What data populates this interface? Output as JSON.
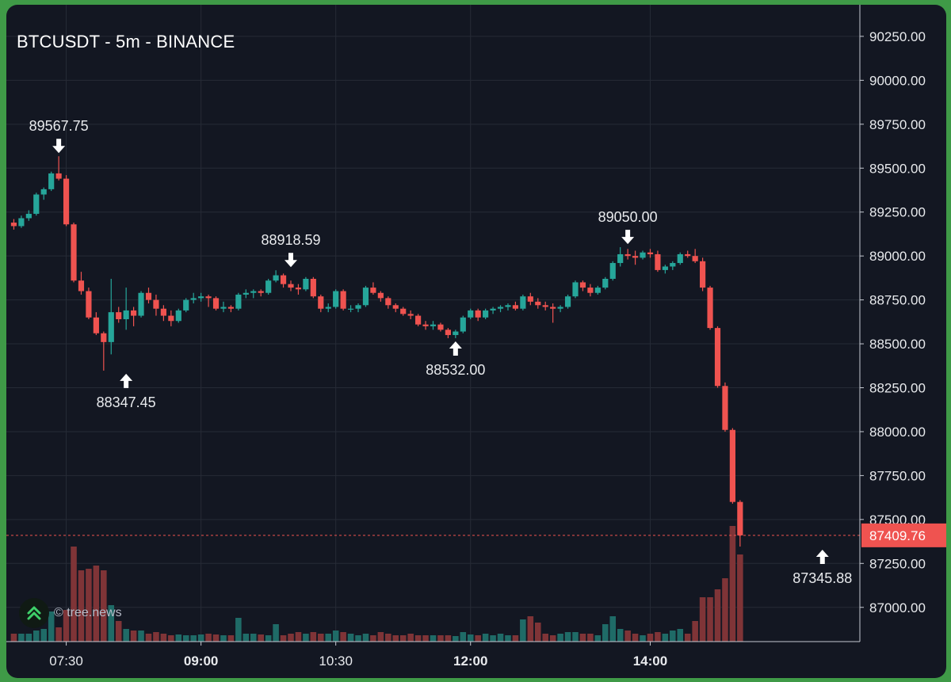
{
  "title": "BTCUSDT - 5m - BINANCE",
  "watermark": {
    "text": "© tree.news",
    "icon": "double-chevron-up-icon"
  },
  "colors": {
    "background": "#131722",
    "grid": "#262b36",
    "up": "#26a69a",
    "down": "#ef5350",
    "up_volume": "#1f6b67",
    "down_volume": "#7f3437",
    "text": "#e8eaed"
  },
  "chart_data": {
    "type": "candlestick",
    "interval": "5m",
    "y_ticks": [
      87000,
      87250,
      87500,
      87750,
      88000,
      88250,
      88500,
      88750,
      89000,
      89250,
      89500,
      89750,
      90000,
      90250
    ],
    "y_tick_labels": [
      "87000.00",
      "87250.00",
      "87500.00",
      "87750.00",
      "88000.00",
      "88250.00",
      "88500.00",
      "88750.00",
      "89000.00",
      "89250.00",
      "89500.00",
      "89750.00",
      "90000.00",
      "90250.00"
    ],
    "ylim": [
      86805,
      90430
    ],
    "x_range": [
      "06:50",
      "16:20"
    ],
    "x_ticks": [
      {
        "time": "07:30",
        "label": "07:30",
        "bold": false
      },
      {
        "time": "09:00",
        "label": "09:00",
        "bold": true
      },
      {
        "time": "10:30",
        "label": "10:30",
        "bold": false
      },
      {
        "time": "12:00",
        "label": "12:00",
        "bold": true
      },
      {
        "time": "14:00",
        "label": "14:00",
        "bold": true
      }
    ],
    "grid": true,
    "current_price": {
      "value": 87409.76,
      "label": "87409.76"
    },
    "annotations": [
      {
        "label": "89567.75",
        "price": 89567.75,
        "time": "07:25",
        "type": "high"
      },
      {
        "label": "88347.45",
        "price": 88347.45,
        "time": "08:10",
        "type": "low"
      },
      {
        "label": "88918.59",
        "price": 88918.59,
        "time": "10:00",
        "type": "high"
      },
      {
        "label": "88532.00",
        "price": 88532.0,
        "time": "11:50",
        "type": "low"
      },
      {
        "label": "89050.00",
        "price": 89050.0,
        "time": "13:45",
        "type": "high"
      },
      {
        "label": "87345.88",
        "price": 87345.88,
        "time": "15:55",
        "type": "low"
      }
    ],
    "candles": [
      [
        89190,
        89210,
        89150,
        89170,
        10
      ],
      [
        89170,
        89230,
        89160,
        89215,
        10
      ],
      [
        89215,
        89260,
        89200,
        89240,
        10
      ],
      [
        89240,
        89360,
        89230,
        89350,
        14
      ],
      [
        89350,
        89390,
        89320,
        89380,
        16
      ],
      [
        89380,
        89480,
        89370,
        89470,
        38
      ],
      [
        89470,
        89567.75,
        89430,
        89440,
        18
      ],
      [
        89440,
        89460,
        89170,
        89180,
        40
      ],
      [
        89180,
        89190,
        88850,
        88860,
        120
      ],
      [
        88860,
        88910,
        88780,
        88800,
        90
      ],
      [
        88800,
        88820,
        88640,
        88650,
        92
      ],
      [
        88650,
        88680,
        88550,
        88560,
        96
      ],
      [
        88560,
        88570,
        88347.45,
        88510,
        90
      ],
      [
        88510,
        88870,
        88440,
        88680,
        46
      ],
      [
        88680,
        88710,
        88620,
        88640,
        26
      ],
      [
        88640,
        88820,
        88580,
        88690,
        16
      ],
      [
        88690,
        88710,
        88600,
        88660,
        14
      ],
      [
        88660,
        88800,
        88650,
        88790,
        14
      ],
      [
        88790,
        88820,
        88730,
        88750,
        10
      ],
      [
        88750,
        88780,
        88660,
        88700,
        12
      ],
      [
        88700,
        88720,
        88630,
        88660,
        10
      ],
      [
        88660,
        88690,
        88600,
        88630,
        8
      ],
      [
        88630,
        88700,
        88620,
        88690,
        9
      ],
      [
        88690,
        88760,
        88680,
        88750,
        8
      ],
      [
        88750,
        88790,
        88730,
        88760,
        8
      ],
      [
        88760,
        88790,
        88740,
        88770,
        9
      ],
      [
        88770,
        88780,
        88710,
        88760,
        10
      ],
      [
        88760,
        88770,
        88690,
        88700,
        9
      ],
      [
        88700,
        88740,
        88680,
        88710,
        8
      ],
      [
        88710,
        88720,
        88680,
        88700,
        8
      ],
      [
        88700,
        88790,
        88690,
        88780,
        30
      ],
      [
        88780,
        88810,
        88760,
        88790,
        10
      ],
      [
        88790,
        88810,
        88760,
        88800,
        10
      ],
      [
        88800,
        88810,
        88770,
        88790,
        9
      ],
      [
        88790,
        88870,
        88780,
        88860,
        8
      ],
      [
        88860,
        88918.59,
        88850,
        88890,
        22
      ],
      [
        88890,
        88900,
        88820,
        88840,
        8
      ],
      [
        88840,
        88860,
        88800,
        88820,
        10
      ],
      [
        88820,
        88840,
        88780,
        88810,
        12
      ],
      [
        88810,
        88880,
        88800,
        88870,
        10
      ],
      [
        88870,
        88880,
        88760,
        88770,
        12
      ],
      [
        88770,
        88780,
        88680,
        88700,
        10
      ],
      [
        88700,
        88730,
        88680,
        88710,
        10
      ],
      [
        88710,
        88810,
        88700,
        88800,
        14
      ],
      [
        88800,
        88810,
        88690,
        88700,
        12
      ],
      [
        88700,
        88720,
        88680,
        88700,
        10
      ],
      [
        88700,
        88730,
        88680,
        88720,
        8
      ],
      [
        88720,
        88830,
        88710,
        88820,
        10
      ],
      [
        88820,
        88850,
        88780,
        88790,
        8
      ],
      [
        88790,
        88800,
        88740,
        88760,
        12
      ],
      [
        88760,
        88770,
        88700,
        88720,
        10
      ],
      [
        88720,
        88730,
        88680,
        88700,
        8
      ],
      [
        88700,
        88710,
        88660,
        88670,
        8
      ],
      [
        88670,
        88690,
        88640,
        88660,
        10
      ],
      [
        88660,
        88670,
        88600,
        88610,
        8
      ],
      [
        88610,
        88630,
        88580,
        88600,
        8
      ],
      [
        88600,
        88630,
        88580,
        88610,
        8
      ],
      [
        88610,
        88620,
        88570,
        88580,
        8
      ],
      [
        88580,
        88590,
        88532,
        88550,
        8
      ],
      [
        88550,
        88580,
        88532,
        88570,
        7
      ],
      [
        88570,
        88660,
        88560,
        88650,
        12
      ],
      [
        88650,
        88700,
        88640,
        88690,
        9
      ],
      [
        88690,
        88700,
        88630,
        88650,
        8
      ],
      [
        88650,
        88700,
        88640,
        88690,
        10
      ],
      [
        88690,
        88710,
        88670,
        88700,
        8
      ],
      [
        88700,
        88720,
        88680,
        88710,
        10
      ],
      [
        88710,
        88730,
        88690,
        88720,
        8
      ],
      [
        88720,
        88740,
        88690,
        88700,
        8
      ],
      [
        88700,
        88780,
        88690,
        88770,
        28
      ],
      [
        88770,
        88790,
        88720,
        88740,
        32
      ],
      [
        88740,
        88760,
        88700,
        88720,
        24
      ],
      [
        88720,
        88740,
        88690,
        88710,
        10
      ],
      [
        88710,
        88730,
        88620,
        88700,
        8
      ],
      [
        88700,
        88720,
        88680,
        88710,
        10
      ],
      [
        88710,
        88780,
        88700,
        88770,
        12
      ],
      [
        88770,
        88860,
        88760,
        88850,
        12
      ],
      [
        88850,
        88860,
        88800,
        88820,
        10
      ],
      [
        88820,
        88840,
        88770,
        88790,
        10
      ],
      [
        88790,
        88830,
        88780,
        88820,
        8
      ],
      [
        88820,
        88880,
        88810,
        88870,
        22
      ],
      [
        88870,
        88970,
        88860,
        88960,
        32
      ],
      [
        88960,
        89050,
        88940,
        89010,
        16
      ],
      [
        89010,
        89040,
        88980,
        89000,
        14
      ],
      [
        89000,
        89030,
        88950,
        88990,
        10
      ],
      [
        88990,
        89030,
        88980,
        89020,
        8
      ],
      [
        89020,
        89040,
        88990,
        89010,
        10
      ],
      [
        89010,
        89030,
        88910,
        88920,
        12
      ],
      [
        88920,
        88950,
        88900,
        88940,
        10
      ],
      [
        88940,
        88970,
        88920,
        88960,
        14
      ],
      [
        88960,
        89020,
        88950,
        89010,
        16
      ],
      [
        89010,
        89030,
        88990,
        89000,
        10
      ],
      [
        89000,
        89040,
        88960,
        88970,
        26
      ],
      [
        88970,
        88990,
        88800,
        88820,
        56
      ],
      [
        88820,
        88830,
        88580,
        88590,
        56
      ],
      [
        88590,
        88600,
        88250,
        88260,
        66
      ],
      [
        88260,
        88280,
        88000,
        88010,
        80
      ],
      [
        88010,
        88020,
        87590,
        87600,
        146
      ],
      [
        87600,
        87610,
        87345.88,
        87409.76,
        110
      ]
    ],
    "volume_series": "candles[*][4]",
    "candle_fields": [
      "open",
      "high",
      "low",
      "close",
      "volume"
    ],
    "volume_max_display": 170
  }
}
